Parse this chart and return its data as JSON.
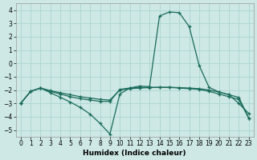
{
  "xlabel": "Humidex (Indice chaleur)",
  "ylabel": "",
  "bg_color": "#cde8e5",
  "grid_color": "#b0d8d4",
  "line_color": "#1a6b5a",
  "xlim": [
    -0.5,
    23.5
  ],
  "ylim": [
    -5.5,
    4.5
  ],
  "xticks": [
    0,
    1,
    2,
    3,
    4,
    5,
    6,
    7,
    8,
    9,
    10,
    11,
    12,
    13,
    14,
    15,
    16,
    17,
    18,
    19,
    20,
    21,
    22,
    23
  ],
  "yticks": [
    -5,
    -4,
    -3,
    -2,
    -1,
    0,
    1,
    2,
    3,
    4
  ],
  "line1_x": [
    0,
    1,
    2,
    3,
    4,
    5,
    6,
    7,
    8,
    9,
    10,
    11,
    12,
    13,
    14,
    15,
    16,
    17,
    18,
    19,
    20,
    21,
    22,
    23
  ],
  "line1_y": [
    -3.0,
    -2.1,
    -1.85,
    -2.1,
    -2.3,
    -2.5,
    -2.65,
    -2.75,
    -2.85,
    -2.85,
    -1.95,
    -1.85,
    -1.82,
    -1.8,
    -1.8,
    -1.8,
    -1.82,
    -1.85,
    -1.9,
    -2.0,
    -2.15,
    -2.35,
    -2.55,
    -4.1
  ],
  "line2_x": [
    0,
    1,
    2,
    3,
    4,
    5,
    6,
    7,
    8,
    9,
    10,
    11,
    12,
    13,
    14,
    15,
    16,
    17,
    18,
    19,
    20,
    21,
    22,
    23
  ],
  "line2_y": [
    -3.0,
    -2.1,
    -1.85,
    -2.05,
    -2.2,
    -2.35,
    -2.5,
    -2.6,
    -2.7,
    -2.75,
    -2.0,
    -1.9,
    -1.85,
    -1.82,
    -1.8,
    -1.8,
    -1.85,
    -1.9,
    -1.95,
    -2.1,
    -2.3,
    -2.5,
    -2.7,
    -4.1
  ],
  "line3_x": [
    0,
    1,
    2,
    3,
    4,
    5,
    6,
    7,
    8,
    9,
    10,
    11,
    12,
    13,
    14,
    15,
    16,
    17,
    18,
    19,
    20,
    21,
    22,
    23
  ],
  "line3_y": [
    -3.0,
    -2.1,
    -1.85,
    -2.2,
    -2.55,
    -2.9,
    -3.3,
    -3.8,
    -4.5,
    -5.3,
    -2.3,
    -1.85,
    -1.7,
    -1.75,
    3.55,
    3.85,
    3.8,
    2.75,
    -0.15,
    -1.8,
    -2.15,
    -2.35,
    -3.0,
    -3.75
  ]
}
